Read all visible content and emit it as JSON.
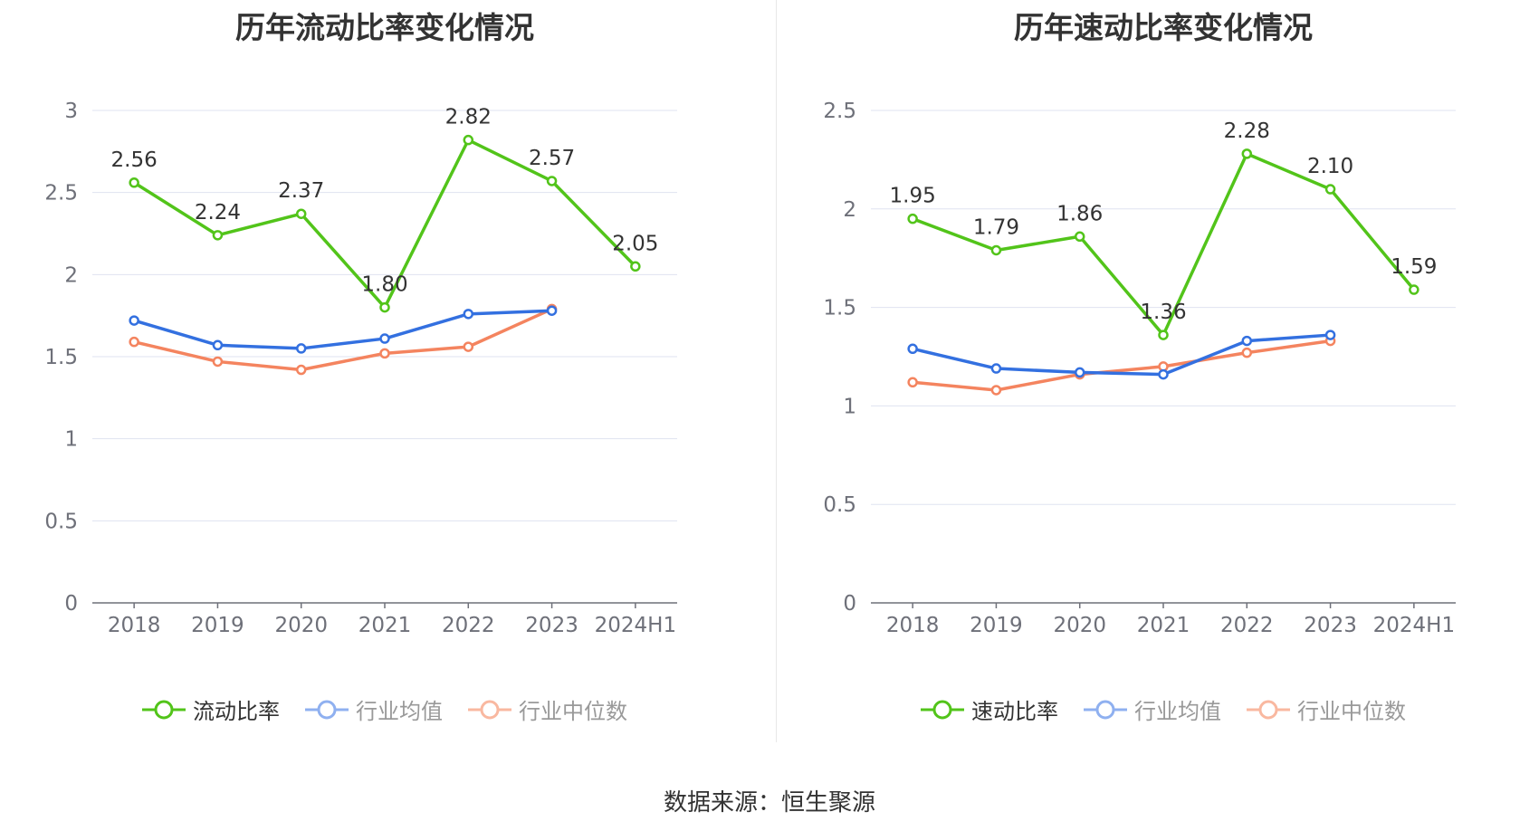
{
  "source_text": "数据来源：恒生聚源",
  "chart_data": [
    {
      "type": "line",
      "title": "历年流动比率变化情况",
      "categories": [
        "2018",
        "2019",
        "2020",
        "2021",
        "2022",
        "2023",
        "2024H1"
      ],
      "ylim": [
        0,
        3
      ],
      "yticks": [
        0,
        0.5,
        1,
        1.5,
        2,
        2.5,
        3
      ],
      "ytick_labels": [
        "0",
        "0.5",
        "1",
        "1.5",
        "2",
        "2.5",
        "3"
      ],
      "grid": true,
      "legend_position": "bottom",
      "series": [
        {
          "name": "流动比率",
          "color": "#52c41a",
          "show_labels": true,
          "values": [
            2.56,
            2.24,
            2.37,
            1.8,
            2.82,
            2.57,
            2.05
          ],
          "labels": [
            "2.56",
            "2.24",
            "2.37",
            "1.80",
            "2.82",
            "2.57",
            "2.05"
          ]
        },
        {
          "name": "行业均值",
          "color": "#3370e0",
          "show_labels": false,
          "values": [
            1.72,
            1.57,
            1.55,
            1.61,
            1.76,
            1.78,
            null
          ]
        },
        {
          "name": "行业中位数",
          "color": "#f4845f",
          "show_labels": false,
          "values": [
            1.59,
            1.47,
            1.42,
            1.52,
            1.56,
            1.79,
            null
          ]
        }
      ]
    },
    {
      "type": "line",
      "title": "历年速动比率变化情况",
      "categories": [
        "2018",
        "2019",
        "2020",
        "2021",
        "2022",
        "2023",
        "2024H1"
      ],
      "ylim": [
        0,
        2.5
      ],
      "yticks": [
        0,
        0.5,
        1,
        1.5,
        2,
        2.5
      ],
      "ytick_labels": [
        "0",
        "0.5",
        "1",
        "1.5",
        "2",
        "2.5"
      ],
      "grid": true,
      "legend_position": "bottom",
      "series": [
        {
          "name": "速动比率",
          "color": "#52c41a",
          "show_labels": true,
          "values": [
            1.95,
            1.79,
            1.86,
            1.36,
            2.28,
            2.1,
            1.59
          ],
          "labels": [
            "1.95",
            "1.79",
            "1.86",
            "1.36",
            "2.28",
            "2.10",
            "1.59"
          ]
        },
        {
          "name": "行业均值",
          "color": "#3370e0",
          "show_labels": false,
          "values": [
            1.29,
            1.19,
            1.17,
            1.16,
            1.33,
            1.36,
            null
          ]
        },
        {
          "name": "行业中位数",
          "color": "#f4845f",
          "show_labels": false,
          "values": [
            1.12,
            1.08,
            1.16,
            1.2,
            1.27,
            1.33,
            null
          ]
        }
      ]
    }
  ]
}
